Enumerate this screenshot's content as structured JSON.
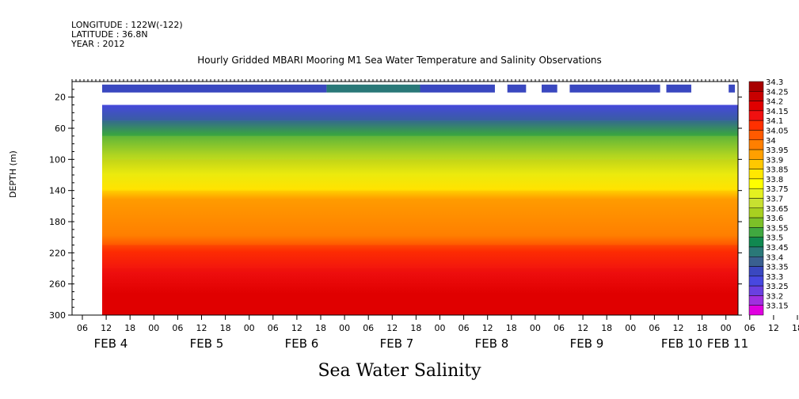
{
  "header": {
    "longitude": "LONGITUDE : 122W(-122)",
    "latitude": "LATITUDE : 36.8N",
    "year": "YEAR : 2012",
    "title": "Hourly Gridded MBARI Mooring M1 Sea Water Temperature and Salinity Observations"
  },
  "chart_data": {
    "type": "heatmap",
    "title": "Hourly Gridded MBARI Mooring M1 Sea Water Temperature and Salinity Observations",
    "subtitle": "Sea Water Salinity",
    "ylabel": "DEPTH (m)",
    "ylim": [
      300,
      0
    ],
    "yticks": [
      20,
      60,
      100,
      140,
      180,
      220,
      260,
      300
    ],
    "x_hour_ticks": [
      "06",
      "12",
      "18",
      "00",
      "06",
      "12",
      "18",
      "00",
      "06",
      "12",
      "18",
      "00",
      "06",
      "12",
      "18",
      "00",
      "06",
      "12",
      "18",
      "00",
      "06",
      "12",
      "18",
      "00",
      "06",
      "12",
      "18",
      "00",
      "06",
      "12",
      "18",
      "00"
    ],
    "x_day_labels": [
      "FEB  4",
      "FEB  5",
      "FEB  6",
      "FEB  7",
      "FEB  8",
      "FEB  9",
      "FEB 10",
      "FEB 11"
    ],
    "colorbar_levels": [
      "34.3",
      "34.25",
      "34.2",
      "34.15",
      "34.1",
      "34.05",
      "34",
      "33.95",
      "33.9",
      "33.85",
      "33.8",
      "33.75",
      "33.7",
      "33.65",
      "33.6",
      "33.55",
      "33.5",
      "33.45",
      "33.4",
      "33.35",
      "33.3",
      "33.25",
      "33.2",
      "33.15"
    ],
    "colorbar_colors": [
      "#a80000",
      "#c80000",
      "#e00000",
      "#f01010",
      "#ff3000",
      "#ff5a00",
      "#ff7f00",
      "#ffa000",
      "#ffc800",
      "#ffe800",
      "#ffff00",
      "#e4f020",
      "#c8e030",
      "#a8d020",
      "#7cc028",
      "#40a840",
      "#108850",
      "#2a7878",
      "#3a6090",
      "#3a48c0",
      "#4848e0",
      "#6a40e0",
      "#a030e0",
      "#e000e0"
    ],
    "surface_row_depth_m": 10,
    "surface_row": [
      {
        "from_hour": 12,
        "to_hour": 84,
        "level": "33.35"
      },
      {
        "from_hour": 84,
        "to_hour": 114,
        "level": "33.45"
      },
      {
        "from_hour": 114,
        "to_hour": 138,
        "level": "33.35"
      },
      {
        "from_hour": 142,
        "to_hour": 148,
        "level": "33.35"
      },
      {
        "from_hour": 153,
        "to_hour": 158,
        "level": "33.35"
      },
      {
        "from_hour": 162,
        "to_hour": 191,
        "level": "33.35"
      },
      {
        "from_hour": 193,
        "to_hour": 201,
        "level": "33.35"
      },
      {
        "from_hour": 213,
        "to_hour": 215,
        "level": "33.35"
      }
    ],
    "profile_layers_depth_m": [
      {
        "from_depth": 30,
        "to_depth": 50,
        "level": "33.35"
      },
      {
        "from_depth": 50,
        "to_depth": 70,
        "level": "33.5"
      },
      {
        "from_depth": 70,
        "to_depth": 100,
        "level": "33.75"
      },
      {
        "from_depth": 100,
        "to_depth": 140,
        "level": "33.9"
      },
      {
        "from_depth": 140,
        "to_depth": 210,
        "level": "34.0"
      },
      {
        "from_depth": 210,
        "to_depth": 240,
        "level": "34.15"
      },
      {
        "from_depth": 240,
        "to_depth": 300,
        "level": "34.2"
      }
    ]
  }
}
